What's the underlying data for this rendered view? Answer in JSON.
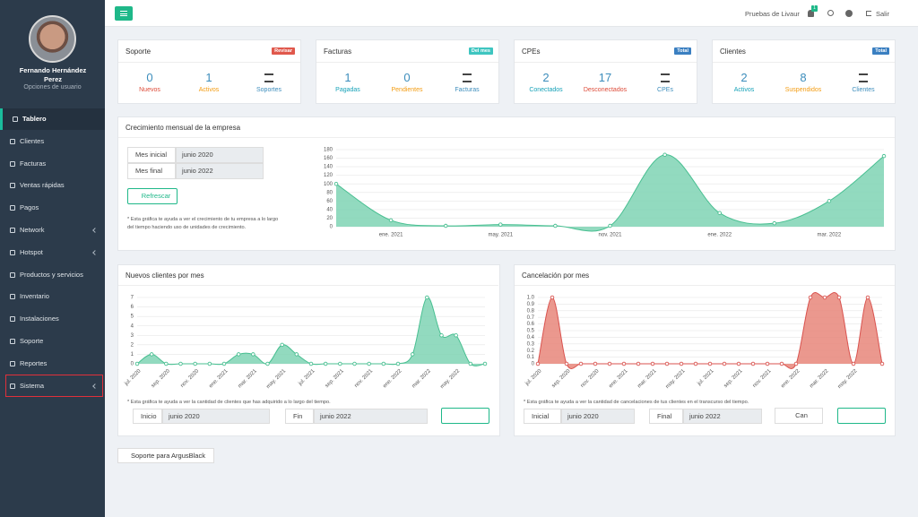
{
  "sidebar": {
    "user_name": "Fernando Hernández Perez",
    "user_options": "Opciones de usuario",
    "menu": [
      {
        "label": "Tablero"
      },
      {
        "label": "Clientes"
      },
      {
        "label": "Facturas"
      },
      {
        "label": "Ventas rápidas"
      },
      {
        "label": "Pagos"
      },
      {
        "label": "Network",
        "submenu": true
      },
      {
        "label": "Hotspot",
        "submenu": true
      },
      {
        "label": "Productos y servicios"
      },
      {
        "label": "Inventario"
      },
      {
        "label": "Instalaciones"
      },
      {
        "label": "Soporte"
      },
      {
        "label": "Reportes"
      },
      {
        "label": "Sistema",
        "submenu": true
      }
    ]
  },
  "topbar": {
    "account": "Pruebas de Livaur",
    "notifications": 1,
    "logout": "Salir"
  },
  "cards": [
    {
      "title": "Soporte",
      "badge": "Revisar",
      "badge_color": "#e0584c",
      "stats": [
        {
          "value": 0,
          "label": "Nuevos",
          "color": "#dd4b39"
        },
        {
          "value": 1,
          "label": "Activos",
          "color": "#f39c12"
        }
      ],
      "link": "Soportes"
    },
    {
      "title": "Facturas",
      "badge": "Del mes",
      "badge_color": "#3ec5c0",
      "stats": [
        {
          "value": 1,
          "label": "Pagadas",
          "color": "#17a2b8"
        },
        {
          "value": 0,
          "label": "Pendientes",
          "color": "#f39c12"
        }
      ],
      "link": "Facturas"
    },
    {
      "title": "CPEs",
      "badge": "Total",
      "badge_color": "#3a7fc1",
      "stats": [
        {
          "value": 2,
          "label": "Conectados",
          "color": "#17a2b8"
        },
        {
          "value": 17,
          "label": "Desconectados",
          "color": "#dd4b39"
        }
      ],
      "link": "CPEs"
    },
    {
      "title": "Clientes",
      "badge": "Total",
      "badge_color": "#3a7fc1",
      "stats": [
        {
          "value": 2,
          "label": "Activos",
          "color": "#17a2b8"
        },
        {
          "value": 8,
          "label": "Suspendidos",
          "color": "#f39c12"
        }
      ],
      "link": "Clientes"
    }
  ],
  "growth_form": {
    "start_label": "Mes inicial",
    "start_value": "junio 2020",
    "end_label": "Mes final",
    "end_value": "junio 2022",
    "button": "Refrescar",
    "note": "* Esta gráfica te ayuda a ver el crecimiento de tu empresa a lo largo del tiempo haciendo uso de unidades de crecimiento."
  },
  "clients_form": {
    "note": "* Esta gráfica te ayuda a ver la cantidad de clientes que has adquirido a lo largo del tiempo.",
    "start_label": "Inicio",
    "start_value": "junio 2020",
    "end_label": "Fin",
    "end_value": "junio 2022"
  },
  "cancel_form": {
    "note": "* Esta gráfica te ayuda a ver la cantidad de cancelaciones de tus clientes en el transcurso del tiempo.",
    "start_label": "Inicial",
    "start_value": "junio 2020",
    "end_label": "Final",
    "end_value": "junio 2022",
    "button": "Can"
  },
  "footer_button": "Soporte para ArgusBlack",
  "chart_data": [
    {
      "type": "area",
      "title": "Crecimiento mensual de la empresa",
      "categories": [
        null,
        "ene. 2021",
        null,
        "may. 2021",
        null,
        "nov. 2021",
        null,
        "ene. 2022",
        null,
        "mar. 2022",
        null
      ],
      "values": [
        100,
        15,
        2,
        5,
        2,
        2,
        168,
        32,
        8,
        60,
        165
      ],
      "color": "#48bf91",
      "fill": "#7fd3b4",
      "ylim": [
        0,
        180
      ],
      "yticks": [
        0,
        20,
        40,
        60,
        80,
        100,
        120,
        140,
        160,
        180
      ],
      "grid": true
    },
    {
      "type": "area",
      "title": "Nuevos clientes por mes",
      "categories": [
        "jul. 2020",
        null,
        "sep. 2020",
        null,
        "nov. 2020",
        null,
        "ene. 2021",
        null,
        "mar. 2021",
        null,
        "may. 2021",
        null,
        "jul. 2021",
        null,
        "sep. 2021",
        null,
        "nov. 2021",
        null,
        "ene. 2022",
        null,
        "mar. 2022",
        null,
        "may. 2022",
        null,
        null
      ],
      "values": [
        0,
        1,
        0,
        0,
        0,
        0,
        0,
        1,
        1,
        0,
        2,
        1,
        0,
        0,
        0,
        0,
        0,
        0,
        0,
        1,
        7,
        3,
        3,
        0,
        0
      ],
      "color": "#48bf91",
      "fill": "#7fd3b4",
      "ylim": [
        0,
        7
      ],
      "yticks": [
        0,
        1,
        2,
        3,
        4,
        5,
        6,
        7
      ],
      "grid": true
    },
    {
      "type": "area",
      "title": "Cancelación por mes",
      "categories": [
        "jul. 2020",
        null,
        "sep. 2020",
        null,
        "nov. 2020",
        null,
        "ene. 2021",
        null,
        "mar. 2021",
        null,
        "may. 2021",
        null,
        "jul. 2021",
        null,
        "sep. 2021",
        null,
        "nov. 2021",
        null,
        "ene. 2022",
        null,
        "mar. 2022",
        null,
        "may. 2022",
        null,
        null
      ],
      "values": [
        0,
        1,
        0,
        0,
        0,
        0,
        0,
        0,
        0,
        0,
        0,
        0,
        0,
        0,
        0,
        0,
        0,
        0,
        0,
        1,
        1,
        1,
        0,
        1,
        0
      ],
      "color": "#d9534f",
      "fill": "#e8867a",
      "ylim": [
        0,
        1
      ],
      "yticks": [
        0,
        0.1,
        0.2,
        0.3,
        0.4,
        0.5,
        0.6,
        0.7,
        0.8,
        0.9,
        {
          "value": 1,
          "label": "1.0"
        }
      ],
      "grid": true
    }
  ]
}
